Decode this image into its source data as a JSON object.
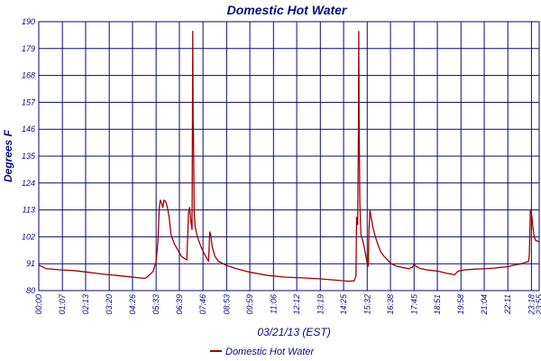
{
  "chart_data": {
    "type": "line",
    "title": "Domestic Hot Water",
    "xlabel": "03/21/13 (EST)",
    "ylabel": "Degrees F",
    "ylim": [
      80,
      190
    ],
    "xlim": [
      0,
      1420
    ],
    "grid": true,
    "legend_position": "bottom-center",
    "y_ticks": [
      80,
      91,
      102,
      113,
      124,
      135,
      146,
      157,
      168,
      179,
      190
    ],
    "x_ticks": [
      {
        "label": "00:00",
        "minute": 0
      },
      {
        "label": "01:07",
        "minute": 67
      },
      {
        "label": "02:13",
        "minute": 133
      },
      {
        "label": "03:20",
        "minute": 200
      },
      {
        "label": "04:26",
        "minute": 266
      },
      {
        "label": "05:33",
        "minute": 333
      },
      {
        "label": "06:39",
        "minute": 399
      },
      {
        "label": "07:46",
        "minute": 466
      },
      {
        "label": "08:53",
        "minute": 533
      },
      {
        "label": "09:59",
        "minute": 599
      },
      {
        "label": "11:06",
        "minute": 666
      },
      {
        "label": "12:12",
        "minute": 732
      },
      {
        "label": "13:19",
        "minute": 799
      },
      {
        "label": "14:25",
        "minute": 865
      },
      {
        "label": "15:32",
        "minute": 932
      },
      {
        "label": "16:38",
        "minute": 998
      },
      {
        "label": "17:45",
        "minute": 1065
      },
      {
        "label": "18:51",
        "minute": 1131
      },
      {
        "label": "19:58",
        "minute": 1198
      },
      {
        "label": "21:04",
        "minute": 1264
      },
      {
        "label": "22:11",
        "minute": 1331
      },
      {
        "label": "23:18",
        "minute": 1398
      },
      {
        "label": "23:55",
        "minute": 1420
      }
    ],
    "series": [
      {
        "name": "Domestic Hot Water",
        "color": "#a00000",
        "points": [
          [
            0,
            90.5
          ],
          [
            20,
            89.0
          ],
          [
            60,
            88.5
          ],
          [
            100,
            88.2
          ],
          [
            140,
            87.5
          ],
          [
            180,
            86.8
          ],
          [
            220,
            86.2
          ],
          [
            260,
            85.6
          ],
          [
            300,
            85.0
          ],
          [
            305,
            85.3
          ],
          [
            315,
            86.5
          ],
          [
            325,
            88.0
          ],
          [
            333,
            92.0
          ],
          [
            338,
            100.0
          ],
          [
            342,
            114.0
          ],
          [
            345,
            117.0
          ],
          [
            348,
            116.0
          ],
          [
            352,
            114.0
          ],
          [
            355,
            117.0
          ],
          [
            360,
            116.5
          ],
          [
            365,
            114.0
          ],
          [
            370,
            110.0
          ],
          [
            375,
            103.0
          ],
          [
            385,
            99.0
          ],
          [
            395,
            96.5
          ],
          [
            405,
            94.0
          ],
          [
            415,
            93.0
          ],
          [
            420,
            92.5
          ],
          [
            425,
            112.0
          ],
          [
            428,
            114.0
          ],
          [
            432,
            108.0
          ],
          [
            435,
            105.0
          ],
          [
            437,
            186.0
          ],
          [
            438,
            150.0
          ],
          [
            439,
            143.0
          ],
          [
            441,
            112.0
          ],
          [
            444,
            106.0
          ],
          [
            450,
            102.0
          ],
          [
            460,
            98.0
          ],
          [
            470,
            95.0
          ],
          [
            478,
            93.0
          ],
          [
            482,
            92.0
          ],
          [
            485,
            104.0
          ],
          [
            488,
            103.0
          ],
          [
            492,
            98.0
          ],
          [
            500,
            94.0
          ],
          [
            510,
            92.0
          ],
          [
            530,
            90.5
          ],
          [
            560,
            89.0
          ],
          [
            600,
            87.5
          ],
          [
            650,
            86.2
          ],
          [
            700,
            85.5
          ],
          [
            750,
            85.2
          ],
          [
            800,
            84.8
          ],
          [
            850,
            84.2
          ],
          [
            880,
            83.8
          ],
          [
            895,
            84.0
          ],
          [
            900,
            86.0
          ],
          [
            902,
            110.0
          ],
          [
            905,
            107.0
          ],
          [
            907,
            145.0
          ],
          [
            908,
            186.0
          ],
          [
            909,
            150.0
          ],
          [
            911,
            116.0
          ],
          [
            914,
            103.0
          ],
          [
            920,
            100.0
          ],
          [
            926,
            96.0
          ],
          [
            932,
            91.0
          ],
          [
            935,
            90.0
          ],
          [
            937,
            105.0
          ],
          [
            940,
            113.0
          ],
          [
            943,
            110.0
          ],
          [
            948,
            106.0
          ],
          [
            955,
            102.0
          ],
          [
            962,
            99.0
          ],
          [
            970,
            96.0
          ],
          [
            980,
            94.0
          ],
          [
            990,
            92.5
          ],
          [
            1000,
            91.0
          ],
          [
            1015,
            90.0
          ],
          [
            1030,
            89.5
          ],
          [
            1050,
            89.0
          ],
          [
            1060,
            89.5
          ],
          [
            1065,
            90.8
          ],
          [
            1070,
            90.0
          ],
          [
            1080,
            89.2
          ],
          [
            1100,
            88.5
          ],
          [
            1130,
            88.0
          ],
          [
            1160,
            87.0
          ],
          [
            1180,
            86.5
          ],
          [
            1190,
            88.0
          ],
          [
            1210,
            88.5
          ],
          [
            1240,
            88.8
          ],
          [
            1270,
            89.0
          ],
          [
            1290,
            89.2
          ],
          [
            1310,
            89.5
          ],
          [
            1330,
            89.8
          ],
          [
            1350,
            90.5
          ],
          [
            1370,
            91.0
          ],
          [
            1380,
            91.5
          ],
          [
            1390,
            92.0
          ],
          [
            1392,
            95.0
          ],
          [
            1395,
            113.0
          ],
          [
            1398,
            112.0
          ],
          [
            1402,
            106.0
          ],
          [
            1406,
            102.0
          ],
          [
            1410,
            100.5
          ],
          [
            1420,
            100.0
          ]
        ]
      }
    ]
  }
}
